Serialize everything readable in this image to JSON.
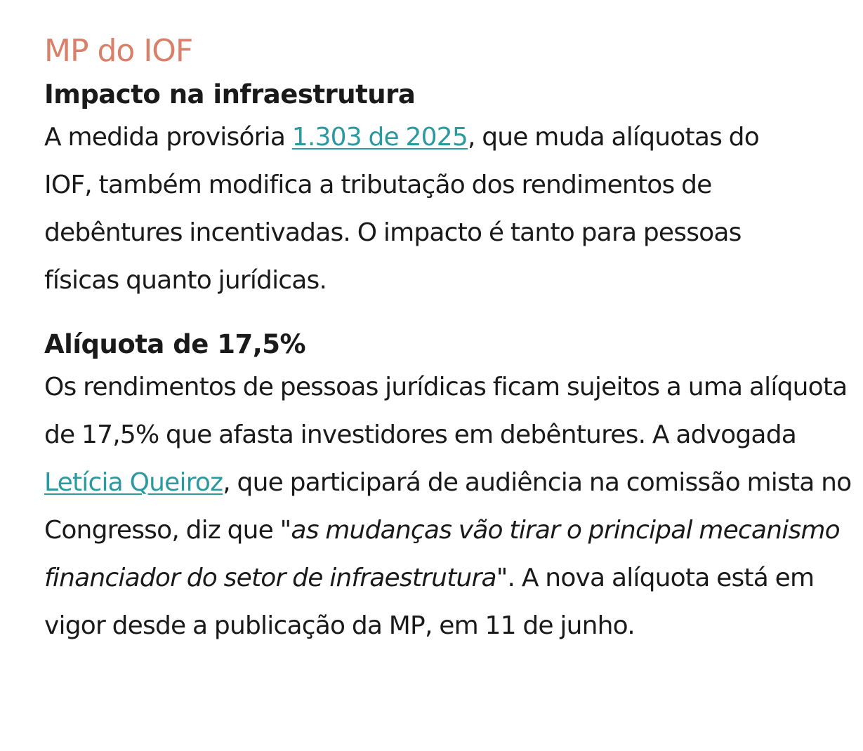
{
  "colors": {
    "kicker": "#d9806a",
    "link": "#2b9aa0",
    "text": "#1a1a1a"
  },
  "kicker": "MP do IOF",
  "section1": {
    "title": "Impacto na infraestrutura",
    "text_before_link": "A medida provisória ",
    "link_label": "1.303 de 2025",
    "text_after_link": ", que muda alíquotas do IOF, também modifica a tributação dos rendimentos de debêntures incentivadas. O impacto é tanto para pessoas físicas quanto jurídicas."
  },
  "section2": {
    "title": "Alíquota de 17,5%",
    "text_before_link": "Os rendimentos de pessoas jurídicas ficam sujeitos a uma alíquota de 17,5% que afasta investidores em debêntures. A advogada ",
    "link_label": "Letícia Queiroz",
    "text_middle": ", que participará de audiência na comissão mista no Congresso, diz que ",
    "quote": "\"as mudanças vão tirar o principal mecanismo financiador do setor de infraestrutura\"",
    "text_after_quote": ". A nova alíquota está em vigor desde a publicação da MP, em 11 de junho."
  }
}
